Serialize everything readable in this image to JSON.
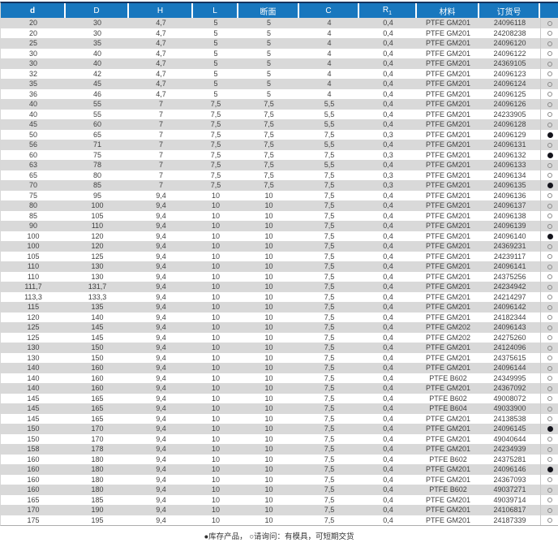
{
  "colors": {
    "header_background": "#1877BE",
    "top_border": "#16335E",
    "row_stripe": "#D9D9D9",
    "filled_dot": "#14141C",
    "open_circle_outline": "#8A8A8A"
  },
  "footer": {
    "note": "●库存产品， ○请询问：有模具，可短期交货"
  },
  "table": {
    "columns": [
      {
        "key": "d",
        "label": "d"
      },
      {
        "key": "d-outer",
        "label": "D"
      },
      {
        "key": "h",
        "label": "H"
      },
      {
        "key": "l",
        "label": "L"
      },
      {
        "key": "cross-section",
        "label": "断面"
      },
      {
        "key": "c",
        "label": "C"
      },
      {
        "key": "r1",
        "label": "R",
        "sub": "1"
      },
      {
        "key": "material",
        "label": "材料"
      },
      {
        "key": "order-no",
        "label": "订货号"
      },
      {
        "key": "stock",
        "label": ""
      }
    ],
    "stock_symbols": {
      "filled": "●",
      "open": "○"
    },
    "rows": [
      [
        "20",
        "30",
        "4,7",
        "5",
        "5",
        "4",
        "0,4",
        "PTFE GM201",
        "24096118",
        "open"
      ],
      [
        "20",
        "30",
        "4,7",
        "5",
        "5",
        "4",
        "0,4",
        "PTFE GM201",
        "24208238",
        "open"
      ],
      [
        "25",
        "35",
        "4,7",
        "5",
        "5",
        "4",
        "0,4",
        "PTFE GM201",
        "24096120",
        "open"
      ],
      [
        "30",
        "40",
        "4,7",
        "5",
        "5",
        "4",
        "0,4",
        "PTFE GM201",
        "24096122",
        "open"
      ],
      [
        "30",
        "40",
        "4,7",
        "5",
        "5",
        "4",
        "0,4",
        "PTFE GM201",
        "24369105",
        "open"
      ],
      [
        "32",
        "42",
        "4,7",
        "5",
        "5",
        "4",
        "0,4",
        "PTFE GM201",
        "24096123",
        "open"
      ],
      [
        "35",
        "45",
        "4,7",
        "5",
        "5",
        "4",
        "0,4",
        "PTFE GM201",
        "24096124",
        "open"
      ],
      [
        "36",
        "46",
        "4,7",
        "5",
        "5",
        "4",
        "0,4",
        "PTFE GM201",
        "24096125",
        "open"
      ],
      [
        "40",
        "55",
        "7",
        "7,5",
        "7,5",
        "5,5",
        "0,4",
        "PTFE GM201",
        "24096126",
        "open"
      ],
      [
        "40",
        "55",
        "7",
        "7,5",
        "7,5",
        "5,5",
        "0,4",
        "PTFE GM201",
        "24233905",
        "open"
      ],
      [
        "45",
        "60",
        "7",
        "7,5",
        "7,5",
        "5,5",
        "0,4",
        "PTFE GM201",
        "24096128",
        "open"
      ],
      [
        "50",
        "65",
        "7",
        "7,5",
        "7,5",
        "7,5",
        "0,3",
        "PTFE GM201",
        "24096129",
        "filled"
      ],
      [
        "56",
        "71",
        "7",
        "7,5",
        "7,5",
        "5,5",
        "0,4",
        "PTFE GM201",
        "24096131",
        "open"
      ],
      [
        "60",
        "75",
        "7",
        "7,5",
        "7,5",
        "7,5",
        "0,3",
        "PTFE GM201",
        "24096132",
        "filled"
      ],
      [
        "63",
        "78",
        "7",
        "7,5",
        "7,5",
        "5,5",
        "0,4",
        "PTFE GM201",
        "24096133",
        "open"
      ],
      [
        "65",
        "80",
        "7",
        "7,5",
        "7,5",
        "7,5",
        "0,3",
        "PTFE GM201",
        "24096134",
        "open"
      ],
      [
        "70",
        "85",
        "7",
        "7,5",
        "7,5",
        "7,5",
        "0,3",
        "PTFE GM201",
        "24096135",
        "filled"
      ],
      [
        "75",
        "95",
        "9,4",
        "10",
        "10",
        "7,5",
        "0,4",
        "PTFE GM201",
        "24096136",
        "open"
      ],
      [
        "80",
        "100",
        "9,4",
        "10",
        "10",
        "7,5",
        "0,4",
        "PTFE GM201",
        "24096137",
        "open"
      ],
      [
        "85",
        "105",
        "9,4",
        "10",
        "10",
        "7,5",
        "0,4",
        "PTFE GM201",
        "24096138",
        "open"
      ],
      [
        "90",
        "110",
        "9,4",
        "10",
        "10",
        "7,5",
        "0,4",
        "PTFE GM201",
        "24096139",
        "open"
      ],
      [
        "100",
        "120",
        "9,4",
        "10",
        "10",
        "7,5",
        "0,4",
        "PTFE GM201",
        "24096140",
        "filled"
      ],
      [
        "100",
        "120",
        "9,4",
        "10",
        "10",
        "7,5",
        "0,4",
        "PTFE GM201",
        "24369231",
        "open"
      ],
      [
        "105",
        "125",
        "9,4",
        "10",
        "10",
        "7,5",
        "0,4",
        "PTFE GM201",
        "24239117",
        "open"
      ],
      [
        "110",
        "130",
        "9,4",
        "10",
        "10",
        "7,5",
        "0,4",
        "PTFE GM201",
        "24096141",
        "open"
      ],
      [
        "110",
        "130",
        "9,4",
        "10",
        "10",
        "7,5",
        "0,4",
        "PTFE GM201",
        "24375256",
        "open"
      ],
      [
        "111,7",
        "131,7",
        "9,4",
        "10",
        "10",
        "7,5",
        "0,4",
        "PTFE GM201",
        "24234942",
        "open"
      ],
      [
        "113,3",
        "133,3",
        "9,4",
        "10",
        "10",
        "7,5",
        "0,4",
        "PTFE GM201",
        "24214297",
        "open"
      ],
      [
        "115",
        "135",
        "9,4",
        "10",
        "10",
        "7,5",
        "0,4",
        "PTFE GM201",
        "24096142",
        "open"
      ],
      [
        "120",
        "140",
        "9,4",
        "10",
        "10",
        "7,5",
        "0,4",
        "PTFE GM201",
        "24182344",
        "open"
      ],
      [
        "125",
        "145",
        "9,4",
        "10",
        "10",
        "7,5",
        "0,4",
        "PTFE GM202",
        "24096143",
        "open"
      ],
      [
        "125",
        "145",
        "9,4",
        "10",
        "10",
        "7,5",
        "0,4",
        "PTFE GM202",
        "24275260",
        "open"
      ],
      [
        "130",
        "150",
        "9,4",
        "10",
        "10",
        "7,5",
        "0,4",
        "PTFE GM201",
        "24124096",
        "open"
      ],
      [
        "130",
        "150",
        "9,4",
        "10",
        "10",
        "7,5",
        "0,4",
        "PTFE GM201",
        "24375615",
        "open"
      ],
      [
        "140",
        "160",
        "9,4",
        "10",
        "10",
        "7,5",
        "0,4",
        "PTFE GM201",
        "24096144",
        "open"
      ],
      [
        "140",
        "160",
        "9,4",
        "10",
        "10",
        "7,5",
        "0,4",
        "PTFE B602",
        "24349995",
        "open"
      ],
      [
        "140",
        "160",
        "9,4",
        "10",
        "10",
        "7,5",
        "0,4",
        "PTFE GM201",
        "24367092",
        "open"
      ],
      [
        "145",
        "165",
        "9,4",
        "10",
        "10",
        "7,5",
        "0,4",
        "PTFE B602",
        "49008072",
        "open"
      ],
      [
        "145",
        "165",
        "9,4",
        "10",
        "10",
        "7,5",
        "0,4",
        "PTFE B604",
        "49033900",
        "open"
      ],
      [
        "145",
        "165",
        "9,4",
        "10",
        "10",
        "7,5",
        "0,4",
        "PTFE GM201",
        "24138538",
        "open"
      ],
      [
        "150",
        "170",
        "9,4",
        "10",
        "10",
        "7,5",
        "0,4",
        "PTFE GM201",
        "24096145",
        "filled"
      ],
      [
        "150",
        "170",
        "9,4",
        "10",
        "10",
        "7,5",
        "0,4",
        "PTFE GM201",
        "49040644",
        "open"
      ],
      [
        "158",
        "178",
        "9,4",
        "10",
        "10",
        "7,5",
        "0,4",
        "PTFE GM201",
        "24234939",
        "open"
      ],
      [
        "160",
        "180",
        "9,4",
        "10",
        "10",
        "7,5",
        "0,4",
        "PTFE B602",
        "24375281",
        "open"
      ],
      [
        "160",
        "180",
        "9,4",
        "10",
        "10",
        "7,5",
        "0,4",
        "PTFE GM201",
        "24096146",
        "filled"
      ],
      [
        "160",
        "180",
        "9,4",
        "10",
        "10",
        "7,5",
        "0,4",
        "PTFE GM201",
        "24367093",
        "open"
      ],
      [
        "160",
        "180",
        "9,4",
        "10",
        "10",
        "7,5",
        "0,4",
        "PTFE B602",
        "49037271",
        "open"
      ],
      [
        "165",
        "185",
        "9,4",
        "10",
        "10",
        "7,5",
        "0,4",
        "PTFE GM201",
        "49039714",
        "open"
      ],
      [
        "170",
        "190",
        "9,4",
        "10",
        "10",
        "7,5",
        "0,4",
        "PTFE GM201",
        "24106817",
        "open"
      ],
      [
        "175",
        "195",
        "9,4",
        "10",
        "10",
        "7,5",
        "0,4",
        "PTFE GM201",
        "24187339",
        "open"
      ]
    ]
  }
}
